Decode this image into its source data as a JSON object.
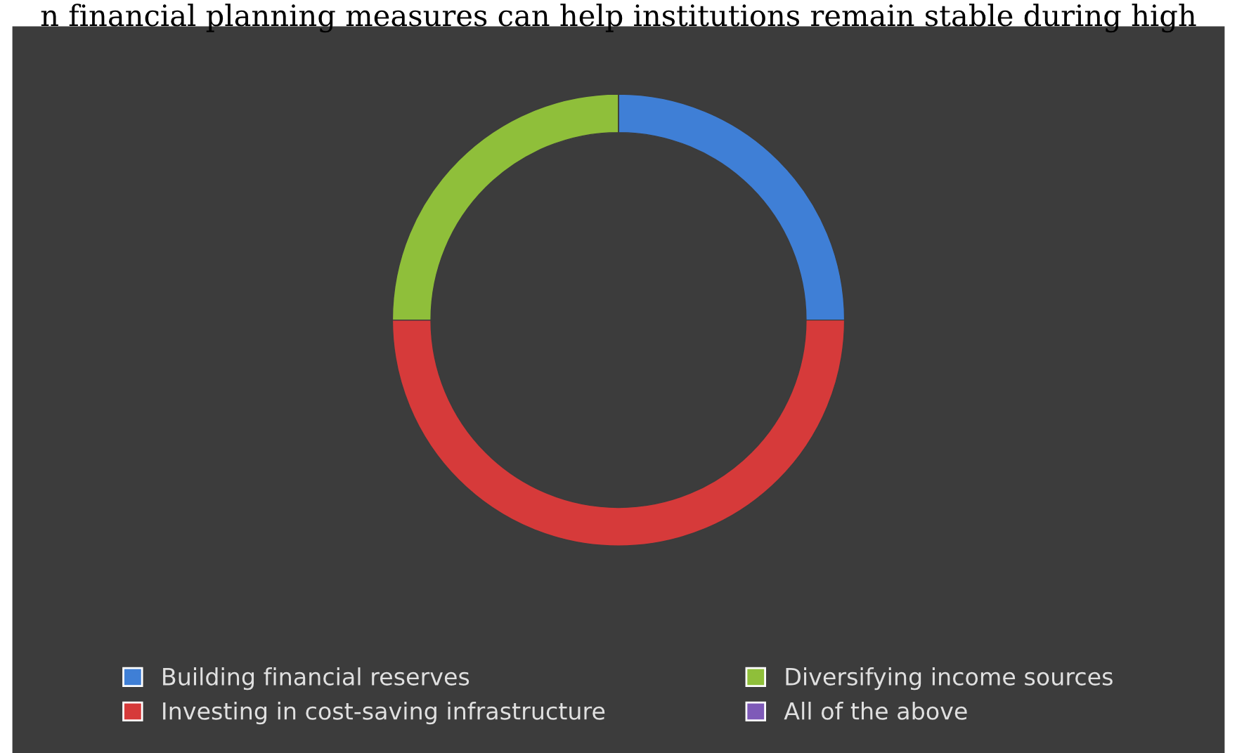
{
  "chart_data": {
    "type": "donut",
    "title": "n financial planning measures can help institutions remain stable during high",
    "categories": [
      "Building financial reserves",
      "Investing in cost-saving infrastructure",
      "Diversifying income sources",
      "All of the above"
    ],
    "values": [
      25,
      50,
      25,
      0
    ],
    "colors": [
      "#3f7fd6",
      "#d63a3a",
      "#8fbf3a",
      "#7e5ab8"
    ],
    "legend": "bottom"
  }
}
